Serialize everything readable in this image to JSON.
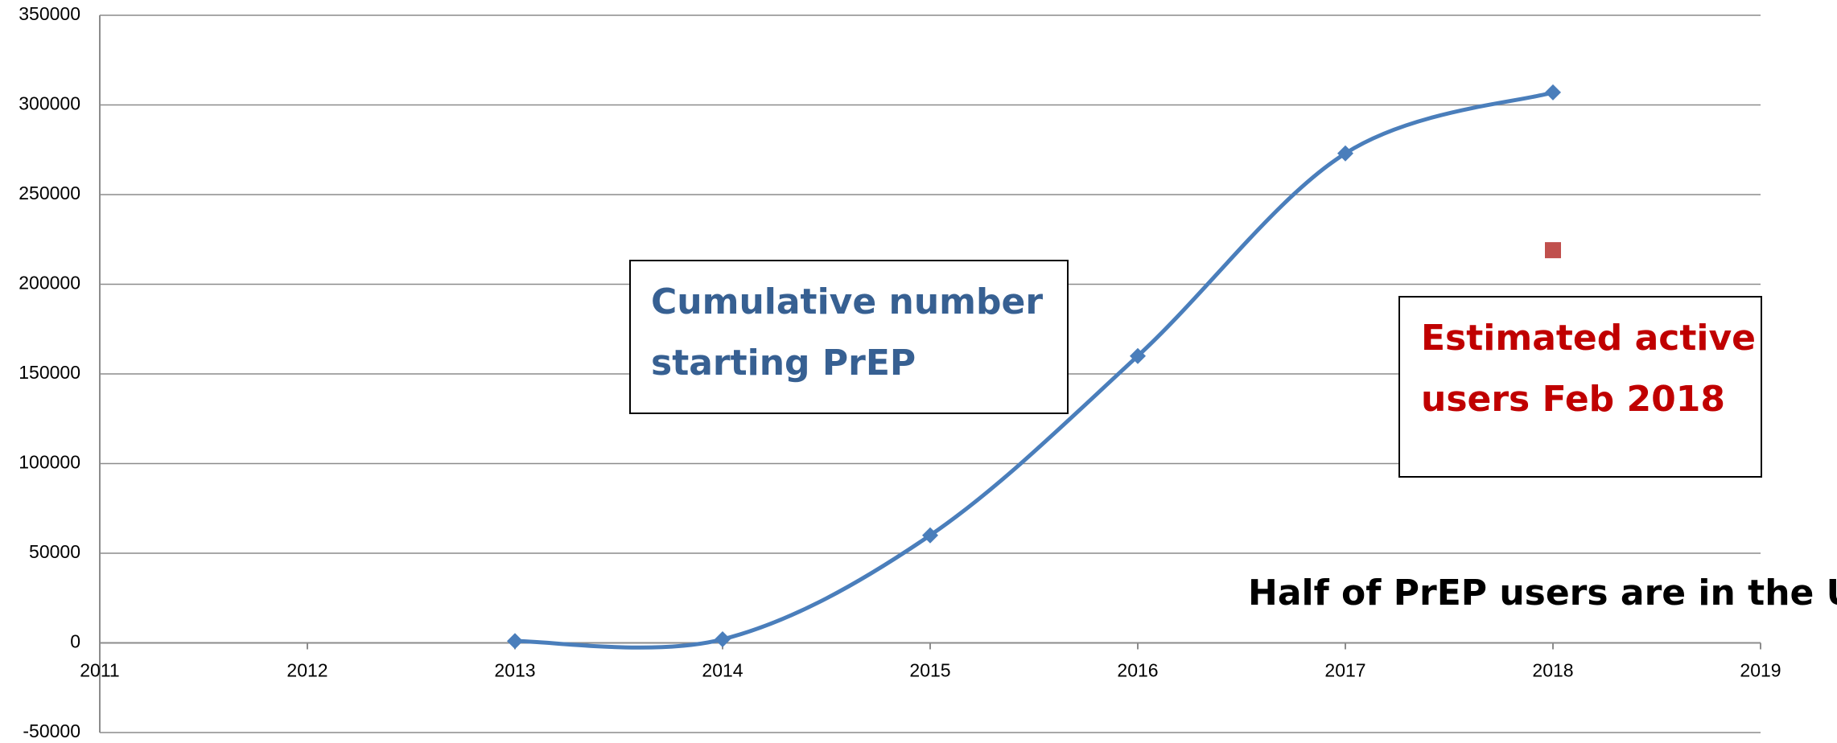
{
  "chart_data": {
    "type": "line",
    "series": [
      {
        "color": "#4a7ebb",
        "x": [
          2013,
          2014,
          2015,
          2016,
          2017,
          2018
        ],
        "values": [
          1000,
          2000,
          60000,
          160000,
          273000,
          307000
        ],
        "marker": "diamond",
        "smooth": true
      },
      {
        "color": "#c0504d",
        "x": [
          2018
        ],
        "values": [
          219000
        ],
        "marker": "square"
      }
    ],
    "xlim": [
      2011,
      2019
    ],
    "xticks": [
      2011,
      2012,
      2013,
      2014,
      2015,
      2016,
      2017,
      2018,
      2019
    ],
    "ylim": [
      -50000,
      350000
    ],
    "yticks": [
      -50000,
      0,
      50000,
      100000,
      150000,
      200000,
      250000,
      300000,
      350000
    ],
    "grid": true,
    "annotations": [
      {
        "lines": [
          "Cumulative number",
          "starting PrEP"
        ],
        "color": "#376092"
      },
      {
        "lines": [
          "Estimated active",
          "users Feb 2018"
        ],
        "color": "#c00000"
      },
      {
        "lines": [
          "Half of PrEP users are in the U.S."
        ],
        "color": "#000000"
      }
    ]
  }
}
